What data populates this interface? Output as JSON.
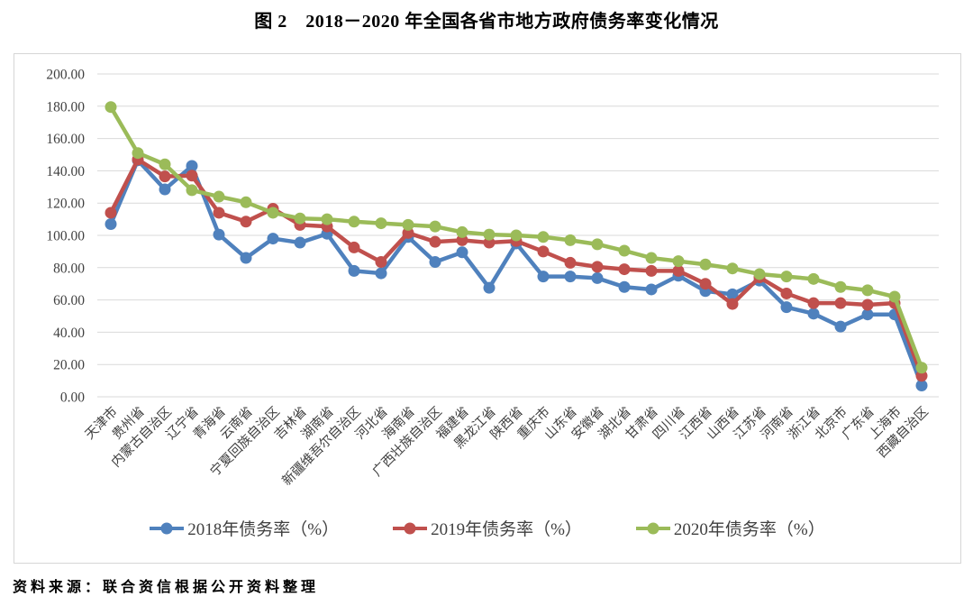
{
  "title": "图 2　2018－2020 年全国各省市地方政府债务率变化情况",
  "source_note": "资料来源：联合资信根据公开资料整理",
  "chart_data": {
    "type": "line",
    "title": "图 2　2018－2020 年全国各省市地方政府债务率变化情况",
    "categories": [
      "天津市",
      "贵州省",
      "内蒙古自治区",
      "辽宁省",
      "青海省",
      "云南省",
      "宁夏回族自治区",
      "吉林省",
      "湖南省",
      "新疆维吾尔自治区",
      "河北省",
      "海南省",
      "广西壮族自治区",
      "福建省",
      "黑龙江省",
      "陕西省",
      "重庆市",
      "山东省",
      "安徽省",
      "湖北省",
      "甘肃省",
      "四川省",
      "江西省",
      "山西省",
      "江苏省",
      "河南省",
      "浙江省",
      "北京市",
      "广东省",
      "上海市",
      "西藏自治区"
    ],
    "series": [
      {
        "name": "2018年债务率（%）",
        "color": "#4F81BD",
        "values": [
          107,
          146.5,
          128.5,
          143,
          100.5,
          86,
          98,
          95.5,
          101,
          78,
          76.5,
          99,
          83.5,
          89.5,
          67.5,
          95,
          74.5,
          74.5,
          73.5,
          68,
          66.5,
          75,
          65.5,
          63.5,
          72,
          55.5,
          51.5,
          43.5,
          51,
          51,
          7
        ]
      },
      {
        "name": "2019年债务率（%）",
        "color": "#C0504D",
        "values": [
          114,
          147,
          136.5,
          137,
          114,
          108.5,
          116.5,
          106.5,
          105.5,
          92.5,
          83.5,
          101.5,
          96,
          97,
          95.5,
          96.5,
          90,
          83,
          80.5,
          79,
          78,
          78,
          70,
          57.5,
          74,
          64,
          58,
          58,
          57,
          58,
          13
        ]
      },
      {
        "name": "2020年债务率（%）",
        "color": "#9BBB59",
        "values": [
          179.5,
          151,
          144,
          128,
          124,
          120.5,
          114,
          110.5,
          110,
          108.5,
          107.5,
          106.5,
          105.5,
          102,
          100.5,
          100,
          99,
          97,
          94.5,
          90.5,
          86,
          84,
          82,
          79.5,
          76,
          74.5,
          73,
          68,
          66,
          62,
          18
        ]
      }
    ],
    "xlabel": "",
    "ylabel": "",
    "ylim": [
      0,
      200
    ],
    "ytick_step": 20,
    "ytick_decimals": 2,
    "grid": "horizontal",
    "gridline_color": "#d9d9d9",
    "legend_position": "bottom"
  }
}
